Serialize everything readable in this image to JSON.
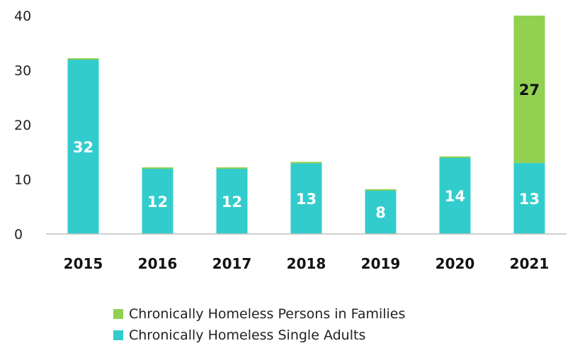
{
  "chart_data": {
    "type": "bar",
    "stacked": true,
    "categories": [
      "2015",
      "2016",
      "2017",
      "2018",
      "2019",
      "2020",
      "2021"
    ],
    "series": [
      {
        "name": "Chronically Homeless Single Adults",
        "color": "#33CCCC",
        "values": [
          32,
          12,
          12,
          13,
          8,
          14,
          13
        ],
        "labels": [
          "32",
          "12",
          "12",
          "13",
          "8",
          "14",
          "13"
        ],
        "label_color": "#ffffff"
      },
      {
        "name": "Chronically Homeless Persons in Families",
        "color": "#92D050",
        "values": [
          0,
          0,
          0,
          0,
          0,
          0,
          27
        ],
        "labels": [
          "",
          "",
          "",
          "",
          "",
          "",
          "27"
        ],
        "label_color": "#111111"
      }
    ],
    "yticks": [
      "0",
      "10",
      "20",
      "30",
      "40"
    ],
    "ylim": [
      0,
      40
    ],
    "grid": false,
    "legend_position": "bottom"
  }
}
